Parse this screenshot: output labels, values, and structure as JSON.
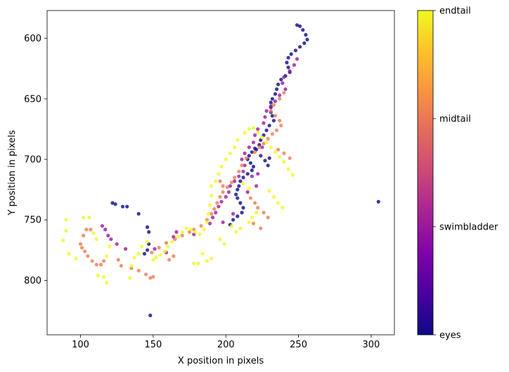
{
  "chart_data": {
    "type": "scatter",
    "title": "",
    "xlabel": "X position in pixels",
    "ylabel": "Y position in pixels",
    "xlim": [
      77,
      316
    ],
    "ylim": [
      845,
      577
    ],
    "y_inverted": true,
    "grid": false,
    "xticks": [
      100,
      150,
      200,
      250,
      300
    ],
    "yticks": [
      600,
      650,
      700,
      750,
      800
    ],
    "colormap": "plasma",
    "colorbar": {
      "tick_labels": [
        "eyes",
        "swimbladder",
        "midtail",
        "endtail"
      ],
      "tick_values": [
        0,
        1,
        2,
        3
      ],
      "range": [
        0,
        3
      ]
    },
    "colors": {
      "eyes": "#0d0887",
      "swimbladder": "#9c179e",
      "midtail": "#ed7953",
      "endtail": "#f0f921"
    },
    "series": [
      {
        "name": "eyes",
        "points": [
          [
            249,
            589
          ],
          [
            251,
            590
          ],
          [
            253,
            593
          ],
          [
            255,
            597
          ],
          [
            256,
            601
          ],
          [
            254,
            604
          ],
          [
            251,
            607
          ],
          [
            248,
            610
          ],
          [
            245,
            613
          ],
          [
            243,
            616
          ],
          [
            242,
            620
          ],
          [
            243,
            624
          ],
          [
            244,
            628
          ],
          [
            241,
            631
          ],
          [
            238,
            634
          ],
          [
            236,
            638
          ],
          [
            235,
            642
          ],
          [
            234,
            646
          ],
          [
            232,
            650
          ],
          [
            231,
            653
          ],
          [
            231,
            657
          ],
          [
            231,
            661
          ],
          [
            232,
            664
          ],
          [
            233,
            668
          ],
          [
            230,
            672
          ],
          [
            228,
            676
          ],
          [
            226,
            680
          ],
          [
            224,
            684
          ],
          [
            223,
            688
          ],
          [
            220,
            691
          ],
          [
            218,
            694
          ],
          [
            216,
            697
          ],
          [
            215,
            700
          ],
          [
            217,
            703
          ],
          [
            219,
            706
          ],
          [
            218,
            709
          ],
          [
            215,
            712
          ],
          [
            212,
            715
          ],
          [
            210,
            718
          ],
          [
            209,
            722
          ],
          [
            208,
            725
          ],
          [
            207,
            729
          ],
          [
            208,
            732
          ],
          [
            210,
            736
          ],
          [
            212,
            740
          ],
          [
            211,
            744
          ],
          [
            208,
            747
          ],
          [
            205,
            750
          ],
          [
            203,
            754
          ],
          [
            122,
            736
          ],
          [
            124,
            737
          ],
          [
            129,
            739
          ],
          [
            132,
            739
          ],
          [
            140,
            745
          ],
          [
            146,
            756
          ],
          [
            147,
            760
          ],
          [
            147,
            770
          ],
          [
            146,
            775
          ],
          [
            144,
            778
          ],
          [
            148,
            829
          ],
          [
            305,
            735
          ],
          [
            221,
            692
          ],
          [
            224,
            697
          ],
          [
            227,
            701
          ],
          [
            229,
            705
          ],
          [
            230,
            699
          ]
        ]
      },
      {
        "name": "swimbladder",
        "points": [
          [
            249,
            617
          ],
          [
            247,
            622
          ],
          [
            244,
            627
          ],
          [
            240,
            632
          ],
          [
            239,
            637
          ],
          [
            241,
            642
          ],
          [
            237,
            647
          ],
          [
            234,
            652
          ],
          [
            231,
            656
          ],
          [
            228,
            660
          ],
          [
            227,
            665
          ],
          [
            226,
            670
          ],
          [
            222,
            675
          ],
          [
            220,
            680
          ],
          [
            219,
            686
          ],
          [
            216,
            690
          ],
          [
            213,
            695
          ],
          [
            211,
            700
          ],
          [
            213,
            705
          ],
          [
            212,
            710
          ],
          [
            209,
            714
          ],
          [
            206,
            718
          ],
          [
            203,
            722
          ],
          [
            202,
            727
          ],
          [
            200,
            731
          ],
          [
            197,
            735
          ],
          [
            195,
            739
          ],
          [
            193,
            744
          ],
          [
            191,
            748
          ],
          [
            189,
            753
          ],
          [
            115,
            755
          ],
          [
            117,
            758
          ],
          [
            119,
            763
          ],
          [
            121,
            766
          ],
          [
            125,
            770
          ],
          [
            131,
            774
          ],
          [
            151,
            774
          ],
          [
            159,
            777
          ],
          [
            164,
            764
          ],
          [
            166,
            760
          ],
          [
            178,
            762
          ],
          [
            218,
            714
          ],
          [
            221,
            722
          ],
          [
            215,
            727
          ],
          [
            225,
            690
          ],
          [
            222,
            712
          ],
          [
            198,
            752
          ],
          [
            205,
            745
          ]
        ]
      },
      {
        "name": "midtail",
        "points": [
          [
            240,
            645
          ],
          [
            237,
            650
          ],
          [
            233,
            655
          ],
          [
            231,
            660
          ],
          [
            234,
            664
          ],
          [
            237,
            668
          ],
          [
            238,
            672
          ],
          [
            235,
            676
          ],
          [
            232,
            679
          ],
          [
            229,
            683
          ],
          [
            226,
            687
          ],
          [
            223,
            690
          ],
          [
            220,
            694
          ],
          [
            214,
            699
          ],
          [
            211,
            705
          ],
          [
            209,
            710
          ],
          [
            206,
            715
          ],
          [
            204,
            719
          ],
          [
            201,
            723
          ],
          [
            198,
            727
          ],
          [
            196,
            731
          ],
          [
            194,
            736
          ],
          [
            192,
            741
          ],
          [
            190,
            745
          ],
          [
            187,
            750
          ],
          [
            183,
            755
          ],
          [
            178,
            758
          ],
          [
            175,
            760
          ],
          [
            170,
            763
          ],
          [
            165,
            766
          ],
          [
            159,
            769
          ],
          [
            154,
            773
          ],
          [
            149,
            777
          ],
          [
            100,
            770
          ],
          [
            101,
            773
          ],
          [
            103,
            776
          ],
          [
            105,
            780
          ],
          [
            108,
            784
          ],
          [
            111,
            787
          ],
          [
            114,
            787
          ],
          [
            116,
            784
          ],
          [
            102,
            763
          ],
          [
            104,
            758
          ],
          [
            107,
            758
          ],
          [
            126,
            783
          ],
          [
            128,
            788
          ],
          [
            135,
            790
          ],
          [
            140,
            792
          ],
          [
            145,
            795
          ],
          [
            148,
            798
          ],
          [
            150,
            797
          ],
          [
            161,
            783
          ],
          [
            164,
            780
          ],
          [
            217,
            732
          ],
          [
            220,
            736
          ],
          [
            222,
            740
          ],
          [
            226,
            744
          ],
          [
            229,
            748
          ],
          [
            219,
            753
          ],
          [
            224,
            757
          ],
          [
            236,
            692
          ],
          [
            240,
            695
          ],
          [
            244,
            699
          ],
          [
            196,
            718
          ],
          [
            198,
            722
          ]
        ]
      },
      {
        "name": "endtail",
        "points": [
          [
            88,
            767
          ],
          [
            90,
            759
          ],
          [
            90,
            750
          ],
          [
            92,
            778
          ],
          [
            97,
            782
          ],
          [
            102,
            748
          ],
          [
            106,
            748
          ],
          [
            109,
            761
          ],
          [
            112,
            796
          ],
          [
            116,
            797
          ],
          [
            118,
            802
          ],
          [
            111,
            766
          ],
          [
            120,
            772
          ],
          [
            118,
            780
          ],
          [
            134,
            798
          ],
          [
            135,
            788
          ],
          [
            137,
            781
          ],
          [
            140,
            778
          ],
          [
            142,
            772
          ],
          [
            146,
            768
          ],
          [
            150,
            783
          ],
          [
            152,
            781
          ],
          [
            155,
            779
          ],
          [
            158,
            776
          ],
          [
            160,
            772
          ],
          [
            163,
            768
          ],
          [
            167,
            764
          ],
          [
            170,
            760
          ],
          [
            173,
            757
          ],
          [
            176,
            758
          ],
          [
            179,
            760
          ],
          [
            182,
            762
          ],
          [
            185,
            758
          ],
          [
            187,
            752
          ],
          [
            188,
            745
          ],
          [
            189,
            738
          ],
          [
            190,
            730
          ],
          [
            190,
            722
          ],
          [
            193,
            718
          ],
          [
            195,
            712
          ],
          [
            197,
            706
          ],
          [
            200,
            700
          ],
          [
            203,
            695
          ],
          [
            206,
            690
          ],
          [
            208,
            684
          ],
          [
            213,
            678
          ],
          [
            216,
            675
          ],
          [
            219,
            674
          ],
          [
            222,
            678
          ],
          [
            225,
            682
          ],
          [
            228,
            686
          ],
          [
            231,
            690
          ],
          [
            234,
            694
          ],
          [
            237,
            698
          ],
          [
            240,
            702
          ],
          [
            243,
            708
          ],
          [
            246,
            713
          ],
          [
            204,
            755
          ],
          [
            207,
            760
          ],
          [
            210,
            757
          ],
          [
            216,
            752
          ],
          [
            218,
            748
          ],
          [
            221,
            744
          ],
          [
            184,
            778
          ],
          [
            187,
            784
          ],
          [
            190,
            782
          ],
          [
            178,
            786
          ],
          [
            181,
            786
          ],
          [
            196,
            766
          ],
          [
            199,
            770
          ],
          [
            230,
            726
          ],
          [
            233,
            731
          ],
          [
            236,
            736
          ],
          [
            239,
            740
          ],
          [
            212,
            720
          ],
          [
            216,
            724
          ]
        ]
      }
    ]
  }
}
